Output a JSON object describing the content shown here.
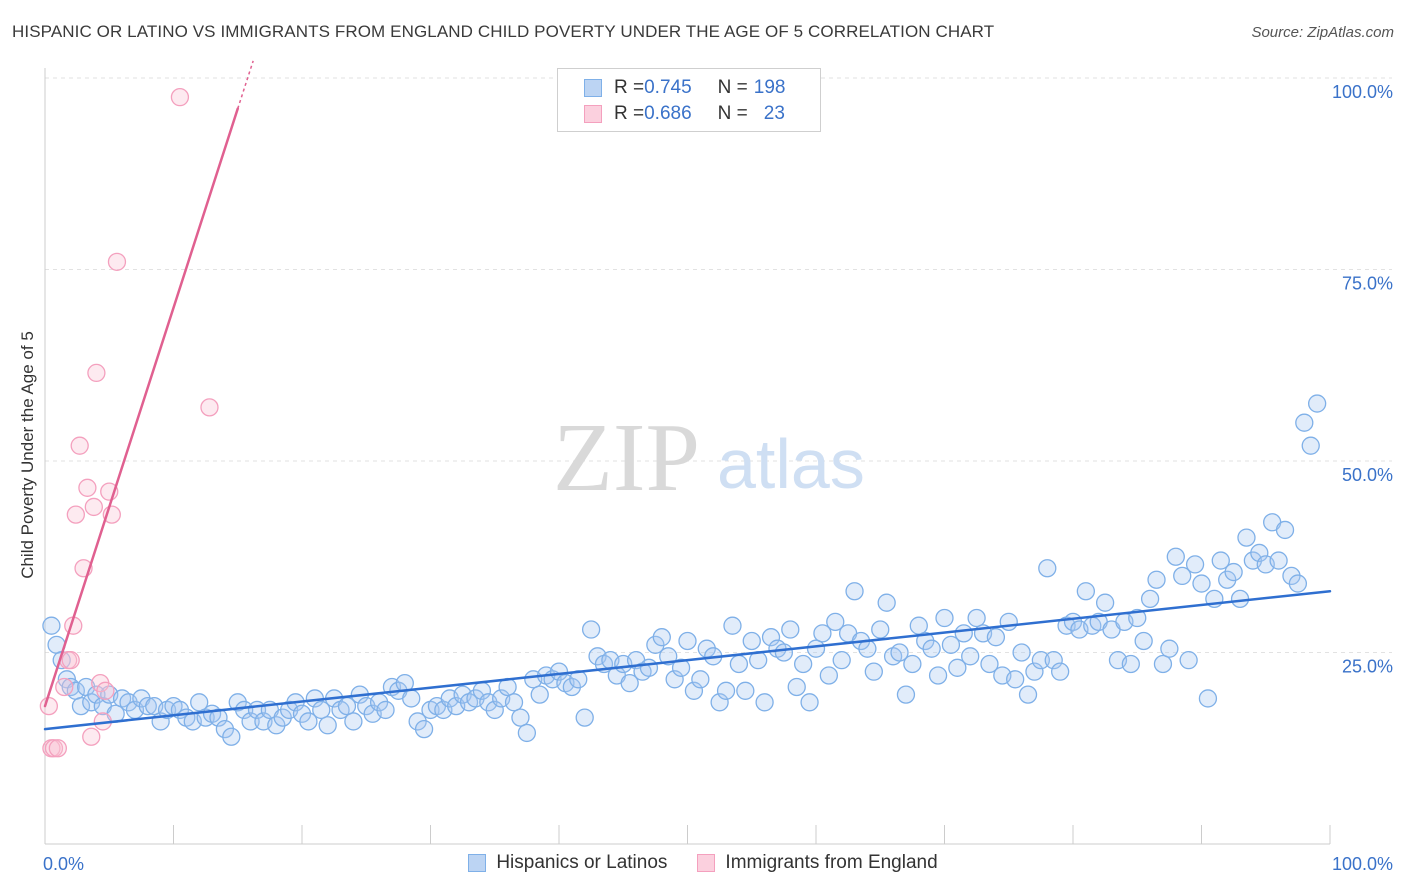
{
  "chart_data": {
    "type": "scatter",
    "title": "HISPANIC OR LATINO VS IMMIGRANTS FROM ENGLAND CHILD POVERTY UNDER THE AGE OF 5 CORRELATION CHART",
    "source": "Source: ZipAtlas.com",
    "ylabel": "Child Poverty Under the Age of 5",
    "xlabel": "",
    "xlim": [
      0,
      100
    ],
    "ylim": [
      0,
      100
    ],
    "x_tick_labels": [
      {
        "value": 0,
        "label": "0.0%"
      },
      {
        "value": 100,
        "label": "100.0%"
      }
    ],
    "y_tick_labels": [
      {
        "value": 25,
        "label": "25.0%"
      },
      {
        "value": 50,
        "label": "50.0%"
      },
      {
        "value": 75,
        "label": "75.0%"
      },
      {
        "value": 100,
        "label": "100.0%"
      }
    ],
    "grid": true,
    "legend_position": "top-center",
    "watermark": {
      "zip": "ZIP",
      "atlas": "atlas"
    },
    "stats": [
      {
        "r_label": "R = ",
        "r": "0.745",
        "n_label": "N = ",
        "n": "198"
      },
      {
        "r_label": "R = ",
        "r": "0.686",
        "n_label": "N = ",
        "n": "23"
      }
    ],
    "series": [
      {
        "name": "Hispanics or Latinos",
        "color": "#7fb0e8",
        "fill": "#a9c9f0",
        "line_color": "#2f6fd0",
        "trend": {
          "x": [
            0,
            100
          ],
          "y": [
            15.0,
            33.0
          ]
        },
        "points": [
          [
            0.5,
            28.5
          ],
          [
            0.9,
            26
          ],
          [
            1.3,
            24
          ],
          [
            1.7,
            21.5
          ],
          [
            2,
            20.5
          ],
          [
            2.4,
            20
          ],
          [
            2.8,
            18
          ],
          [
            3.2,
            20.5
          ],
          [
            3.6,
            18.5
          ],
          [
            4,
            19.5
          ],
          [
            4.5,
            18
          ],
          [
            5,
            19.5
          ],
          [
            5.5,
            17
          ],
          [
            6,
            19
          ],
          [
            6.5,
            18.5
          ],
          [
            7,
            17.5
          ],
          [
            7.5,
            19
          ],
          [
            8,
            18
          ],
          [
            8.5,
            18
          ],
          [
            9,
            16
          ],
          [
            9.5,
            17.5
          ],
          [
            10,
            18
          ],
          [
            10.5,
            17.5
          ],
          [
            11,
            16.5
          ],
          [
            11.5,
            16
          ],
          [
            12,
            18.5
          ],
          [
            12.5,
            16.5
          ],
          [
            13,
            17
          ],
          [
            13.5,
            16.5
          ],
          [
            14,
            15
          ],
          [
            14.5,
            14
          ],
          [
            15,
            18.5
          ],
          [
            15.5,
            17.5
          ],
          [
            16,
            16
          ],
          [
            16.5,
            17.5
          ],
          [
            17,
            16
          ],
          [
            17.5,
            17.5
          ],
          [
            18,
            15.5
          ],
          [
            18.5,
            16.5
          ],
          [
            19,
            17.5
          ],
          [
            19.5,
            18.5
          ],
          [
            20,
            17
          ],
          [
            20.5,
            16
          ],
          [
            21,
            19
          ],
          [
            21.5,
            17.5
          ],
          [
            22,
            15.5
          ],
          [
            22.5,
            19
          ],
          [
            23,
            17.5
          ],
          [
            23.5,
            18
          ],
          [
            24,
            16
          ],
          [
            24.5,
            19.5
          ],
          [
            25,
            18
          ],
          [
            25.5,
            17
          ],
          [
            26,
            18.5
          ],
          [
            26.5,
            17.5
          ],
          [
            27,
            20.5
          ],
          [
            27.5,
            20
          ],
          [
            28,
            21
          ],
          [
            28.5,
            19
          ],
          [
            29,
            16
          ],
          [
            29.5,
            15
          ],
          [
            30,
            17.5
          ],
          [
            30.5,
            18
          ],
          [
            31,
            17.5
          ],
          [
            31.5,
            19
          ],
          [
            32,
            18
          ],
          [
            32.5,
            19.5
          ],
          [
            33,
            18.5
          ],
          [
            33.5,
            19
          ],
          [
            34,
            20
          ],
          [
            34.5,
            18.5
          ],
          [
            35,
            17.5
          ],
          [
            35.5,
            19
          ],
          [
            36,
            20.5
          ],
          [
            36.5,
            18.5
          ],
          [
            37,
            16.5
          ],
          [
            37.5,
            14.5
          ],
          [
            38,
            21.5
          ],
          [
            38.5,
            19.5
          ],
          [
            39,
            22
          ],
          [
            39.5,
            21.5
          ],
          [
            40,
            22.5
          ],
          [
            40.5,
            21
          ],
          [
            41,
            20.5
          ],
          [
            41.5,
            21.5
          ],
          [
            42,
            16.5
          ],
          [
            42.5,
            28
          ],
          [
            43,
            24.5
          ],
          [
            43.5,
            23.5
          ],
          [
            44,
            24
          ],
          [
            44.5,
            22
          ],
          [
            45,
            23.5
          ],
          [
            45.5,
            21
          ],
          [
            46,
            24
          ],
          [
            46.5,
            22.5
          ],
          [
            47,
            23
          ],
          [
            47.5,
            26
          ],
          [
            48,
            27
          ],
          [
            48.5,
            24.5
          ],
          [
            49,
            21.5
          ],
          [
            49.5,
            23
          ],
          [
            50,
            26.5
          ],
          [
            50.5,
            20
          ],
          [
            51,
            21.5
          ],
          [
            51.5,
            25.5
          ],
          [
            52,
            24.5
          ],
          [
            52.5,
            18.5
          ],
          [
            53,
            20
          ],
          [
            53.5,
            28.5
          ],
          [
            54,
            23.5
          ],
          [
            54.5,
            20
          ],
          [
            55,
            26.5
          ],
          [
            55.5,
            24
          ],
          [
            56,
            18.5
          ],
          [
            56.5,
            27
          ],
          [
            57,
            25.5
          ],
          [
            57.5,
            25
          ],
          [
            58,
            28
          ],
          [
            58.5,
            20.5
          ],
          [
            59,
            23.5
          ],
          [
            59.5,
            18.5
          ],
          [
            60,
            25.5
          ],
          [
            60.5,
            27.5
          ],
          [
            61,
            22
          ],
          [
            61.5,
            29
          ],
          [
            62,
            24
          ],
          [
            62.5,
            27.5
          ],
          [
            63,
            33
          ],
          [
            63.5,
            26.5
          ],
          [
            64,
            25.5
          ],
          [
            64.5,
            22.5
          ],
          [
            65,
            28
          ],
          [
            65.5,
            31.5
          ],
          [
            66,
            24.5
          ],
          [
            66.5,
            25
          ],
          [
            67,
            19.5
          ],
          [
            67.5,
            23.5
          ],
          [
            68,
            28.5
          ],
          [
            68.5,
            26.5
          ],
          [
            69,
            25.5
          ],
          [
            69.5,
            22
          ],
          [
            70,
            29.5
          ],
          [
            70.5,
            26
          ],
          [
            71,
            23
          ],
          [
            71.5,
            27.5
          ],
          [
            72,
            24.5
          ],
          [
            72.5,
            29.5
          ],
          [
            73,
            27.5
          ],
          [
            73.5,
            23.5
          ],
          [
            74,
            27
          ],
          [
            74.5,
            22
          ],
          [
            75,
            29
          ],
          [
            75.5,
            21.5
          ],
          [
            76,
            25
          ],
          [
            76.5,
            19.5
          ],
          [
            77,
            22.5
          ],
          [
            77.5,
            24
          ],
          [
            78,
            36
          ],
          [
            78.5,
            24
          ],
          [
            79,
            22.5
          ],
          [
            79.5,
            28.5
          ],
          [
            80,
            29
          ],
          [
            80.5,
            28
          ],
          [
            81,
            33
          ],
          [
            81.5,
            28.5
          ],
          [
            82,
            29
          ],
          [
            82.5,
            31.5
          ],
          [
            83,
            28
          ],
          [
            83.5,
            24
          ],
          [
            84,
            29
          ],
          [
            84.5,
            23.5
          ],
          [
            85,
            29.5
          ],
          [
            85.5,
            26.5
          ],
          [
            86,
            32
          ],
          [
            86.5,
            34.5
          ],
          [
            87,
            23.5
          ],
          [
            87.5,
            25.5
          ],
          [
            88,
            37.5
          ],
          [
            88.5,
            35
          ],
          [
            89,
            24
          ],
          [
            89.5,
            36.5
          ],
          [
            90,
            34
          ],
          [
            90.5,
            19
          ],
          [
            91,
            32
          ],
          [
            91.5,
            37
          ],
          [
            92,
            34.5
          ],
          [
            92.5,
            35.5
          ],
          [
            93,
            32
          ],
          [
            93.5,
            40
          ],
          [
            94,
            37
          ],
          [
            94.5,
            38
          ],
          [
            95,
            36.5
          ],
          [
            95.5,
            42
          ],
          [
            96,
            37
          ],
          [
            96.5,
            41
          ],
          [
            97,
            35
          ],
          [
            97.5,
            34
          ],
          [
            98,
            55
          ],
          [
            98.5,
            52
          ],
          [
            99,
            57.5
          ]
        ]
      },
      {
        "name": "Immigrants from England",
        "color": "#f4a0be",
        "fill": "#f8c4d5",
        "line_color": "#e06090",
        "trend": {
          "x": [
            0,
            15
          ],
          "y": [
            18,
            96
          ]
        },
        "points": [
          [
            0.3,
            18
          ],
          [
            0.5,
            12.5
          ],
          [
            0.7,
            12.5
          ],
          [
            1,
            12.5
          ],
          [
            1.5,
            20.5
          ],
          [
            1.8,
            24
          ],
          [
            2,
            24
          ],
          [
            2.2,
            28.5
          ],
          [
            2.4,
            43
          ],
          [
            2.7,
            52
          ],
          [
            3,
            36
          ],
          [
            3.3,
            46.5
          ],
          [
            3.6,
            14
          ],
          [
            3.8,
            44
          ],
          [
            4,
            61.5
          ],
          [
            4.3,
            21
          ],
          [
            4.5,
            16
          ],
          [
            4.7,
            20
          ],
          [
            5,
            46
          ],
          [
            5.2,
            43
          ],
          [
            5.6,
            76
          ],
          [
            10.5,
            97.5
          ],
          [
            12.8,
            57
          ]
        ]
      }
    ]
  }
}
